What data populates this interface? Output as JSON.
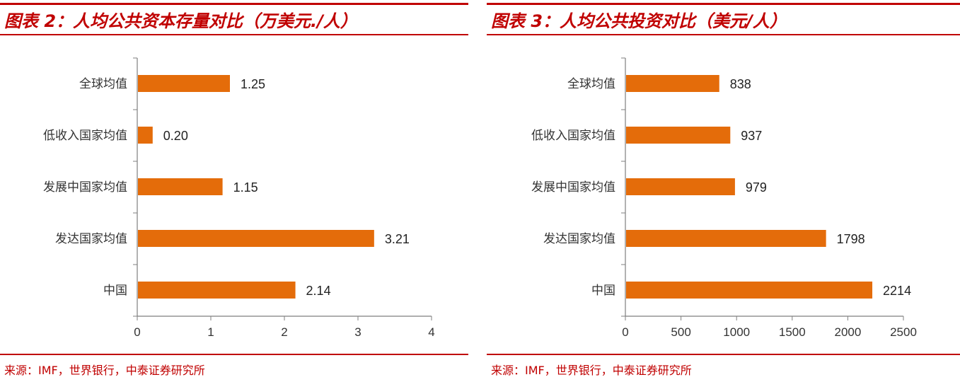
{
  "chart_data": [
    {
      "type": "bar",
      "orientation": "horizontal",
      "title": "图表 2：人均公共资本存量对比（万美元./人）",
      "source": "来源：IMF，世界银行，中泰证券研究所",
      "categories": [
        "全球均值",
        "低收入国家均值",
        "发展中国家均值",
        "发达国家均值",
        "中国"
      ],
      "values": [
        1.25,
        0.2,
        1.15,
        3.21,
        2.14
      ],
      "value_labels": [
        "1.25",
        "0.20",
        "1.15",
        "3.21",
        "2.14"
      ],
      "xlim": [
        0,
        4
      ],
      "xticks": [
        "0",
        "1",
        "2",
        "3",
        "4"
      ],
      "grid": false,
      "bar_color": "#e46c0a"
    },
    {
      "type": "bar",
      "orientation": "horizontal",
      "title": "图表 3：人均公共投资对比（美元/人）",
      "source": "来源：IMF，世界银行，中泰证券研究所",
      "categories": [
        "全球均值",
        "低收入国家均值",
        "发展中国家均值",
        "发达国家均值",
        "中国"
      ],
      "values": [
        838,
        937,
        979,
        1798,
        2214
      ],
      "value_labels": [
        "838",
        "937",
        "979",
        "1798",
        "2214"
      ],
      "xlim": [
        0,
        2500
      ],
      "xticks": [
        "0",
        "500",
        "1000",
        "1500",
        "2000",
        "2500"
      ],
      "grid": false,
      "bar_color": "#e46c0a"
    }
  ],
  "colors": {
    "accent": "#c00000",
    "bar": "#e46c0a",
    "axis": "#7f7f7f"
  }
}
